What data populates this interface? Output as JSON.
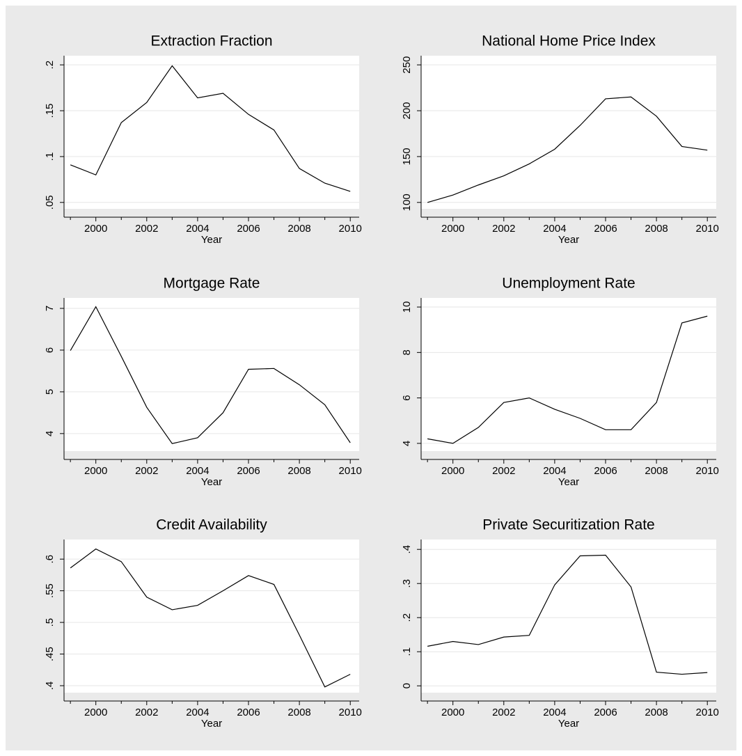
{
  "chart_data": [
    {
      "type": "line",
      "title": "Extraction Fraction",
      "x_label": "Year",
      "x": [
        1999,
        2000,
        2001,
        2002,
        2003,
        2004,
        2005,
        2006,
        2007,
        2008,
        2009,
        2010
      ],
      "values": [
        0.091,
        0.08,
        0.137,
        0.159,
        0.199,
        0.164,
        0.169,
        0.146,
        0.129,
        0.087,
        0.071,
        0.062
      ],
      "color": "#000000",
      "xlim": [
        1998.75,
        2010.35
      ],
      "xticks": [
        2000,
        2002,
        2004,
        2006,
        2008,
        2010
      ],
      "xminorticks": [
        1999,
        2001,
        2003,
        2005,
        2007,
        2009
      ],
      "ylim": [
        0.043,
        0.21
      ],
      "yticks": [
        {
          "value": 0.05,
          "label": ".05"
        },
        {
          "value": 0.1,
          "label": ".1"
        },
        {
          "value": 0.15,
          "label": ".15"
        },
        {
          "value": 0.2,
          "label": ".2"
        }
      ],
      "grid": true
    },
    {
      "type": "line",
      "title": "National Home Price Index",
      "x_label": "Year",
      "x": [
        1999,
        2000,
        2001,
        2002,
        2003,
        2004,
        2005,
        2006,
        2007,
        2008,
        2009,
        2010
      ],
      "values": [
        100,
        108,
        119,
        129,
        142,
        158,
        184,
        213,
        215,
        194,
        161,
        157
      ],
      "color": "#000000",
      "xlim": [
        1998.75,
        2010.35
      ],
      "xticks": [
        2000,
        2002,
        2004,
        2006,
        2008,
        2010
      ],
      "xminorticks": [
        1999,
        2001,
        2003,
        2005,
        2007,
        2009
      ],
      "ylim": [
        93,
        260
      ],
      "yticks": [
        100,
        150,
        200,
        250
      ],
      "grid": true
    },
    {
      "type": "line",
      "title": "Mortgage Rate",
      "x_label": "Year",
      "x": [
        1999,
        2000,
        2001,
        2002,
        2003,
        2004,
        2005,
        2006,
        2007,
        2008,
        2009,
        2010
      ],
      "values": [
        5.99,
        7.04,
        5.85,
        4.63,
        3.76,
        3.9,
        4.5,
        5.54,
        5.56,
        5.17,
        4.69,
        3.78
      ],
      "color": "#000000",
      "xlim": [
        1998.75,
        2010.35
      ],
      "xticks": [
        2000,
        2002,
        2004,
        2006,
        2008,
        2010
      ],
      "xminorticks": [
        1999,
        2001,
        2003,
        2005,
        2007,
        2009
      ],
      "ylim": [
        3.58,
        7.25
      ],
      "yticks": [
        4,
        5,
        6,
        7
      ],
      "grid": true
    },
    {
      "type": "line",
      "title": "Unemployment Rate",
      "x_label": "Year",
      "x": [
        1999,
        2000,
        2001,
        2002,
        2003,
        2004,
        2005,
        2006,
        2007,
        2008,
        2009,
        2010
      ],
      "values": [
        4.2,
        4.0,
        4.7,
        5.8,
        6.0,
        5.5,
        5.1,
        4.6,
        4.6,
        5.8,
        9.3,
        9.6
      ],
      "color": "#000000",
      "xlim": [
        1998.75,
        2010.35
      ],
      "xticks": [
        2000,
        2002,
        2004,
        2006,
        2008,
        2010
      ],
      "xminorticks": [
        1999,
        2001,
        2003,
        2005,
        2007,
        2009
      ],
      "ylim": [
        3.66,
        10.4
      ],
      "yticks": [
        4,
        6,
        8,
        10
      ],
      "grid": true
    },
    {
      "type": "line",
      "title": "Credit Availability",
      "x_label": "Year",
      "x": [
        1999,
        2000,
        2001,
        2002,
        2003,
        2004,
        2005,
        2006,
        2007,
        2008,
        2009,
        2010
      ],
      "values": [
        0.586,
        0.616,
        0.596,
        0.54,
        0.52,
        0.527,
        0.55,
        0.574,
        0.56,
        0.48,
        0.398,
        0.418
      ],
      "color": "#000000",
      "xlim": [
        1998.75,
        2010.35
      ],
      "xticks": [
        2000,
        2002,
        2004,
        2006,
        2008,
        2010
      ],
      "xminorticks": [
        1999,
        2001,
        2003,
        2005,
        2007,
        2009
      ],
      "ylim": [
        0.389,
        0.631
      ],
      "yticks": [
        {
          "value": 0.4,
          "label": ".4"
        },
        {
          "value": 0.45,
          "label": ".45"
        },
        {
          "value": 0.5,
          "label": ".5"
        },
        {
          "value": 0.55,
          "label": ".55"
        },
        {
          "value": 0.6,
          "label": ".6"
        }
      ],
      "grid": true
    },
    {
      "type": "line",
      "title": "Private Securitization Rate",
      "x_label": "Year",
      "x": [
        1999,
        2000,
        2001,
        2002,
        2003,
        2004,
        2005,
        2006,
        2007,
        2008,
        2009,
        2010
      ],
      "values": [
        0.116,
        0.13,
        0.121,
        0.143,
        0.148,
        0.296,
        0.381,
        0.383,
        0.29,
        0.04,
        0.034,
        0.039
      ],
      "color": "#000000",
      "xlim": [
        1998.75,
        2010.35
      ],
      "xticks": [
        2000,
        2002,
        2004,
        2006,
        2008,
        2010
      ],
      "xminorticks": [
        1999,
        2001,
        2003,
        2005,
        2007,
        2009
      ],
      "ylim": [
        -0.02,
        0.429
      ],
      "yticks": [
        0,
        {
          "value": 0.1,
          "label": ".1"
        },
        {
          "value": 0.2,
          "label": ".2"
        },
        {
          "value": 0.3,
          "label": ".3"
        },
        {
          "value": 0.4,
          "label": ".4"
        }
      ],
      "grid": true
    }
  ]
}
